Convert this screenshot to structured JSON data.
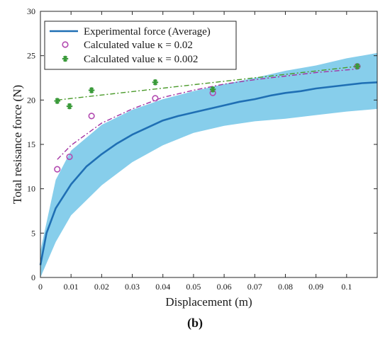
{
  "panel_label": "(b)",
  "chart_data": {
    "type": "line",
    "xlabel": "Displacement (m)",
    "ylabel": "Total resisance force (N)",
    "xlim": [
      0,
      0.11
    ],
    "ylim": [
      0,
      30
    ],
    "x_ticks": [
      0,
      0.01,
      0.02,
      0.03,
      0.04,
      0.05,
      0.06,
      0.07,
      0.08,
      0.09,
      0.1
    ],
    "x_tick_labels": [
      "0",
      "0.01",
      "0.02",
      "0.03",
      "0.04",
      "0.05",
      "0.06",
      "0.07",
      "0.08",
      "0.09",
      "0.1"
    ],
    "y_ticks": [
      0,
      5,
      10,
      15,
      20,
      25,
      30
    ],
    "y_tick_labels": [
      "0",
      "5",
      "10",
      "15",
      "20",
      "25",
      "30"
    ],
    "grid": false,
    "legend_position": "top-left",
    "legend": [
      {
        "label": "Experimental force (Average)",
        "series": "experimental"
      },
      {
        "label": "Calculated value κ = 0.02",
        "series": "kappa_002"
      },
      {
        "label": "Calculated value κ = 0.002",
        "series": "kappa_0002"
      }
    ],
    "band": {
      "color": "#87ceeb",
      "x": [
        0,
        0.005,
        0.01,
        0.02,
        0.03,
        0.04,
        0.05,
        0.06,
        0.07,
        0.08,
        0.09,
        0.1,
        0.11
      ],
      "upper": [
        3.0,
        11.0,
        14.3,
        17.2,
        18.9,
        20.1,
        21.0,
        21.8,
        22.5,
        23.3,
        23.9,
        24.7,
        25.3
      ],
      "lower": [
        0.0,
        4.0,
        7.0,
        10.4,
        13.0,
        14.9,
        16.3,
        17.1,
        17.6,
        17.9,
        18.3,
        18.7,
        19.0
      ]
    },
    "series": [
      {
        "id": "experimental",
        "style": "line",
        "color": "#1f6fb4",
        "x": [
          0,
          0.002,
          0.005,
          0.01,
          0.015,
          0.02,
          0.025,
          0.03,
          0.035,
          0.04,
          0.045,
          0.05,
          0.055,
          0.06,
          0.065,
          0.07,
          0.075,
          0.08,
          0.085,
          0.09,
          0.095,
          0.1,
          0.105,
          0.11
        ],
        "y": [
          1.4,
          5.0,
          7.8,
          10.5,
          12.5,
          13.9,
          15.1,
          16.1,
          16.9,
          17.7,
          18.2,
          18.6,
          19.0,
          19.4,
          19.8,
          20.1,
          20.5,
          20.8,
          21.0,
          21.3,
          21.5,
          21.7,
          21.9,
          22.0
        ]
      },
      {
        "id": "kappa_002",
        "style": "markers",
        "marker": "circle",
        "color": "#b24ab0",
        "x": [
          0.0055,
          0.0095,
          0.0167,
          0.0375,
          0.0563,
          0.1035
        ],
        "y": [
          12.2,
          13.6,
          18.2,
          20.2,
          20.8,
          23.8
        ]
      },
      {
        "id": "kappa_002_fit",
        "style": "dashdot",
        "color": "#a233a2",
        "x": [
          0.0055,
          0.01,
          0.02,
          0.03,
          0.04,
          0.05,
          0.06,
          0.07,
          0.08,
          0.09,
          0.1035
        ],
        "y": [
          13.3,
          14.9,
          17.4,
          19.0,
          20.3,
          21.1,
          21.8,
          22.3,
          22.7,
          23.1,
          23.5
        ]
      },
      {
        "id": "kappa_0002",
        "style": "markers",
        "marker": "asterisk",
        "color": "#3a9a3a",
        "x": [
          0.0055,
          0.0095,
          0.0167,
          0.0375,
          0.0563,
          0.1035
        ],
        "y": [
          19.9,
          19.3,
          21.1,
          22.0,
          21.2,
          23.8
        ]
      },
      {
        "id": "kappa_0002_fit",
        "style": "dashdot",
        "color": "#4a9a2a",
        "x": [
          0.0055,
          0.1035
        ],
        "y": [
          20.0,
          23.8
        ]
      }
    ]
  }
}
